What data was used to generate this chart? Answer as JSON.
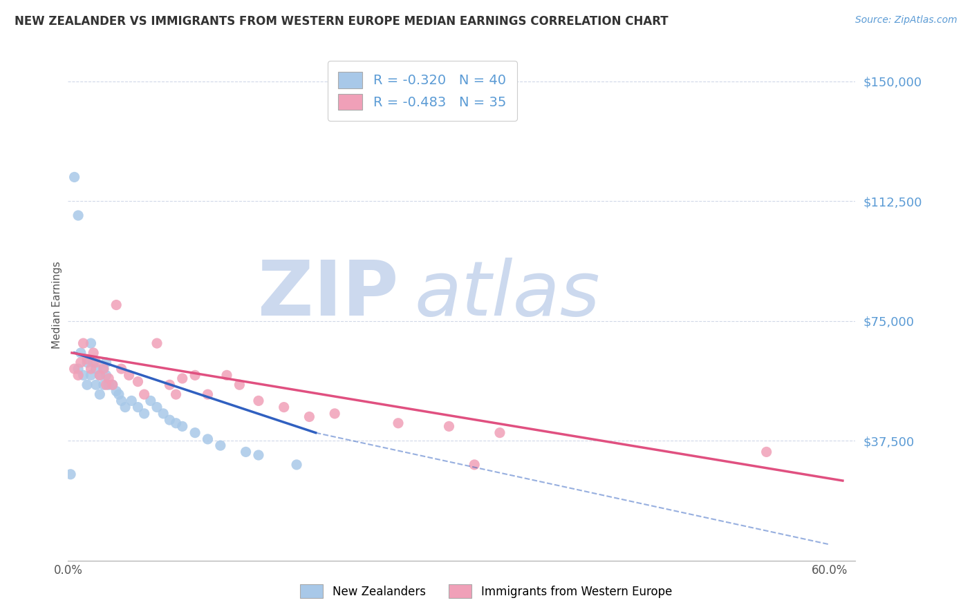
{
  "title": "NEW ZEALANDER VS IMMIGRANTS FROM WESTERN EUROPE MEDIAN EARNINGS CORRELATION CHART",
  "source": "Source: ZipAtlas.com",
  "ylabel": "Median Earnings",
  "xlim": [
    0.0,
    0.62
  ],
  "ylim": [
    0,
    160000
  ],
  "ytick_labels": [
    "$150,000",
    "$112,500",
    "$75,000",
    "$37,500"
  ],
  "ytick_values": [
    150000,
    112500,
    75000,
    37500
  ],
  "xtick_labels": [
    "0.0%",
    "60.0%"
  ],
  "xtick_values": [
    0.0,
    0.6
  ],
  "title_color": "#333333",
  "ytick_color": "#5b9bd5",
  "grid_color": "#d0d8e8",
  "background_color": "#ffffff",
  "watermark_color": "#ccd9ee",
  "legend_r1": "R = -0.320",
  "legend_n1": "N = 40",
  "legend_r2": "R = -0.483",
  "legend_n2": "N = 35",
  "legend_label1": "New Zealanders",
  "legend_label2": "Immigrants from Western Europe",
  "scatter1_color": "#a8c8e8",
  "scatter2_color": "#f0a0b8",
  "line1_color": "#3060c0",
  "line2_color": "#e05080",
  "scatter1_x": [
    0.002,
    0.005,
    0.008,
    0.008,
    0.01,
    0.012,
    0.015,
    0.015,
    0.018,
    0.018,
    0.02,
    0.022,
    0.022,
    0.025,
    0.025,
    0.028,
    0.028,
    0.03,
    0.03,
    0.032,
    0.035,
    0.038,
    0.04,
    0.042,
    0.045,
    0.05,
    0.055,
    0.06,
    0.065,
    0.07,
    0.075,
    0.08,
    0.085,
    0.09,
    0.1,
    0.11,
    0.12,
    0.14,
    0.15,
    0.18
  ],
  "scatter1_y": [
    27000,
    120000,
    108000,
    60000,
    65000,
    58000,
    62000,
    55000,
    68000,
    58000,
    62000,
    60000,
    55000,
    58000,
    52000,
    60000,
    55000,
    62000,
    58000,
    55000,
    55000,
    53000,
    52000,
    50000,
    48000,
    50000,
    48000,
    46000,
    50000,
    48000,
    46000,
    44000,
    43000,
    42000,
    40000,
    38000,
    36000,
    34000,
    33000,
    30000
  ],
  "scatter1_line_x": [
    0.005,
    0.195
  ],
  "scatter1_line_y": [
    65000,
    40000
  ],
  "scatter2_x": [
    0.005,
    0.008,
    0.01,
    0.012,
    0.015,
    0.018,
    0.02,
    0.022,
    0.025,
    0.028,
    0.03,
    0.032,
    0.035,
    0.038,
    0.042,
    0.048,
    0.055,
    0.06,
    0.07,
    0.08,
    0.085,
    0.09,
    0.1,
    0.11,
    0.125,
    0.135,
    0.15,
    0.17,
    0.19,
    0.21,
    0.26,
    0.3,
    0.34,
    0.55,
    0.32
  ],
  "scatter2_y": [
    60000,
    58000,
    62000,
    68000,
    63000,
    60000,
    65000,
    62000,
    58000,
    60000,
    55000,
    57000,
    55000,
    80000,
    60000,
    58000,
    56000,
    52000,
    68000,
    55000,
    52000,
    57000,
    58000,
    52000,
    58000,
    55000,
    50000,
    48000,
    45000,
    46000,
    43000,
    42000,
    40000,
    34000,
    30000
  ],
  "scatter2_line_x": [
    0.003,
    0.61
  ],
  "scatter2_line_y": [
    65000,
    25000
  ]
}
